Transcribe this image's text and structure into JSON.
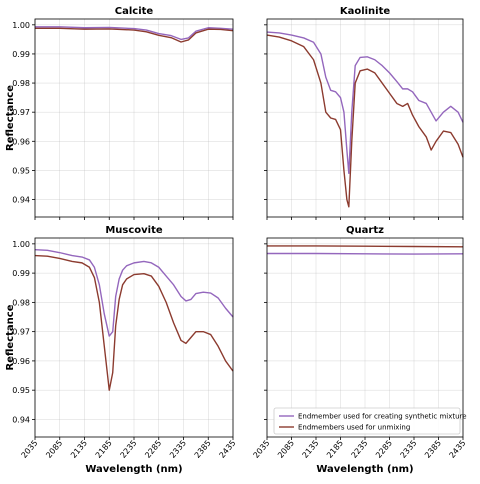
{
  "chart_data": [
    {
      "type": "line",
      "title": "Calcite",
      "xlabel": "",
      "ylabel": "Reflectance",
      "xlim": [
        2035,
        2435
      ],
      "ylim": [
        0.934,
        1.002
      ],
      "xticks": [
        "2035",
        "2085",
        "2135",
        "2185",
        "2235",
        "2285",
        "2335",
        "2385",
        "2435"
      ],
      "yticks": [
        "0.94",
        "0.95",
        "0.96",
        "0.97",
        "0.98",
        "0.99",
        "1.00"
      ],
      "show_x_ticklabels": false,
      "show_y_ticklabels": true,
      "grid": true,
      "series": [
        {
          "color": "#9467bd",
          "x": [
            2035,
            2085,
            2135,
            2185,
            2235,
            2260,
            2285,
            2310,
            2330,
            2345,
            2360,
            2385,
            2410,
            2435
          ],
          "y": [
            0.9993,
            0.9993,
            0.999,
            0.9991,
            0.9987,
            0.9982,
            0.997,
            0.9963,
            0.995,
            0.9955,
            0.9978,
            0.999,
            0.9988,
            0.9985
          ]
        },
        {
          "color": "#8c3b2f",
          "x": [
            2035,
            2085,
            2135,
            2185,
            2235,
            2260,
            2285,
            2310,
            2330,
            2345,
            2360,
            2385,
            2410,
            2435
          ],
          "y": [
            0.9988,
            0.9988,
            0.9985,
            0.9986,
            0.9982,
            0.9976,
            0.9964,
            0.9956,
            0.9941,
            0.9948,
            0.9972,
            0.9985,
            0.9984,
            0.998
          ]
        }
      ]
    },
    {
      "type": "line",
      "title": "Kaolinite",
      "xlabel": "",
      "ylabel": "",
      "xlim": [
        2035,
        2435
      ],
      "ylim": [
        0.934,
        1.002
      ],
      "xticks": [
        "2035",
        "2085",
        "2135",
        "2185",
        "2235",
        "2285",
        "2335",
        "2385",
        "2435"
      ],
      "yticks": [
        "0.94",
        "0.95",
        "0.96",
        "0.97",
        "0.98",
        "0.99",
        "1.00"
      ],
      "show_x_ticklabels": false,
      "show_y_ticklabels": false,
      "grid": true,
      "series": [
        {
          "color": "#9467bd",
          "x": [
            2035,
            2060,
            2085,
            2110,
            2130,
            2145,
            2155,
            2165,
            2175,
            2185,
            2192,
            2198,
            2202,
            2208,
            2215,
            2225,
            2240,
            2255,
            2270,
            2285,
            2300,
            2312,
            2322,
            2332,
            2345,
            2360,
            2370,
            2380,
            2395,
            2410,
            2425,
            2435
          ],
          "y": [
            0.9975,
            0.9972,
            0.9965,
            0.9955,
            0.994,
            0.99,
            0.982,
            0.9775,
            0.977,
            0.975,
            0.97,
            0.957,
            0.949,
            0.97,
            0.986,
            0.9888,
            0.989,
            0.988,
            0.986,
            0.9835,
            0.9805,
            0.978,
            0.978,
            0.977,
            0.974,
            0.973,
            0.97,
            0.967,
            0.97,
            0.972,
            0.97,
            0.9665
          ]
        },
        {
          "color": "#8c3b2f",
          "x": [
            2035,
            2060,
            2085,
            2110,
            2130,
            2145,
            2155,
            2165,
            2175,
            2185,
            2192,
            2198,
            2202,
            2208,
            2215,
            2225,
            2240,
            2255,
            2270,
            2285,
            2300,
            2312,
            2322,
            2332,
            2345,
            2360,
            2370,
            2380,
            2395,
            2410,
            2425,
            2435
          ],
          "y": [
            0.9965,
            0.9958,
            0.9945,
            0.9925,
            0.988,
            0.98,
            0.97,
            0.968,
            0.9675,
            0.964,
            0.95,
            0.94,
            0.9375,
            0.96,
            0.98,
            0.9842,
            0.9848,
            0.9835,
            0.98,
            0.9765,
            0.973,
            0.972,
            0.973,
            0.969,
            0.965,
            0.9615,
            0.957,
            0.96,
            0.9635,
            0.963,
            0.959,
            0.9545
          ]
        }
      ]
    },
    {
      "type": "line",
      "title": "Muscovite",
      "xlabel": "Wavelength (nm)",
      "ylabel": "Reflectance",
      "xlim": [
        2035,
        2435
      ],
      "ylim": [
        0.934,
        1.002
      ],
      "xticks": [
        "2035",
        "2085",
        "2135",
        "2185",
        "2235",
        "2285",
        "2335",
        "2385",
        "2435"
      ],
      "yticks": [
        "0.94",
        "0.95",
        "0.96",
        "0.97",
        "0.98",
        "0.99",
        "1.00"
      ],
      "show_x_ticklabels": true,
      "show_y_ticklabels": true,
      "grid": true,
      "series": [
        {
          "color": "#9467bd",
          "x": [
            2035,
            2060,
            2085,
            2110,
            2130,
            2145,
            2155,
            2165,
            2175,
            2185,
            2192,
            2198,
            2205,
            2212,
            2220,
            2235,
            2255,
            2270,
            2285,
            2300,
            2315,
            2330,
            2340,
            2350,
            2360,
            2375,
            2390,
            2405,
            2420,
            2435
          ],
          "y": [
            0.998,
            0.9978,
            0.997,
            0.996,
            0.9955,
            0.9945,
            0.992,
            0.986,
            0.976,
            0.9685,
            0.97,
            0.982,
            0.988,
            0.991,
            0.9925,
            0.9935,
            0.994,
            0.9935,
            0.992,
            0.989,
            0.986,
            0.982,
            0.9805,
            0.981,
            0.983,
            0.9835,
            0.9832,
            0.9815,
            0.978,
            0.975
          ]
        },
        {
          "color": "#8c3b2f",
          "x": [
            2035,
            2060,
            2085,
            2110,
            2130,
            2145,
            2155,
            2165,
            2175,
            2185,
            2192,
            2198,
            2205,
            2212,
            2220,
            2235,
            2255,
            2270,
            2285,
            2300,
            2315,
            2330,
            2340,
            2350,
            2360,
            2375,
            2390,
            2405,
            2420,
            2435
          ],
          "y": [
            0.996,
            0.9958,
            0.995,
            0.994,
            0.9935,
            0.992,
            0.9885,
            0.98,
            0.965,
            0.95,
            0.956,
            0.972,
            0.981,
            0.986,
            0.988,
            0.9895,
            0.9898,
            0.989,
            0.9855,
            0.98,
            0.973,
            0.967,
            0.966,
            0.968,
            0.97,
            0.97,
            0.969,
            0.965,
            0.96,
            0.9565
          ]
        }
      ]
    },
    {
      "type": "line",
      "title": "Quartz",
      "xlabel": "Wavelength (nm)",
      "ylabel": "",
      "xlim": [
        2035,
        2435
      ],
      "ylim": [
        0.934,
        1.002
      ],
      "xticks": [
        "2035",
        "2085",
        "2135",
        "2185",
        "2235",
        "2285",
        "2335",
        "2385",
        "2435"
      ],
      "yticks": [
        "0.94",
        "0.95",
        "0.96",
        "0.97",
        "0.98",
        "0.99",
        "1.00"
      ],
      "show_x_ticklabels": true,
      "show_y_ticklabels": false,
      "grid": true,
      "legend": {
        "placement": "lower-right",
        "entries": [
          "Endmember used for creating synthetic mixture",
          "Endmembers used for unmixing"
        ]
      },
      "series": [
        {
          "name": "Endmember used for creating synthetic mixture",
          "color": "#9467bd",
          "x": [
            2035,
            2135,
            2235,
            2335,
            2435
          ],
          "y": [
            0.9967,
            0.9967,
            0.9966,
            0.9965,
            0.9966
          ]
        },
        {
          "name": "Endmembers used for unmixing",
          "color": "#8c3b2f",
          "x": [
            2035,
            2135,
            2235,
            2335,
            2435
          ],
          "y": [
            0.9993,
            0.9993,
            0.9992,
            0.9991,
            0.999
          ]
        }
      ]
    }
  ]
}
